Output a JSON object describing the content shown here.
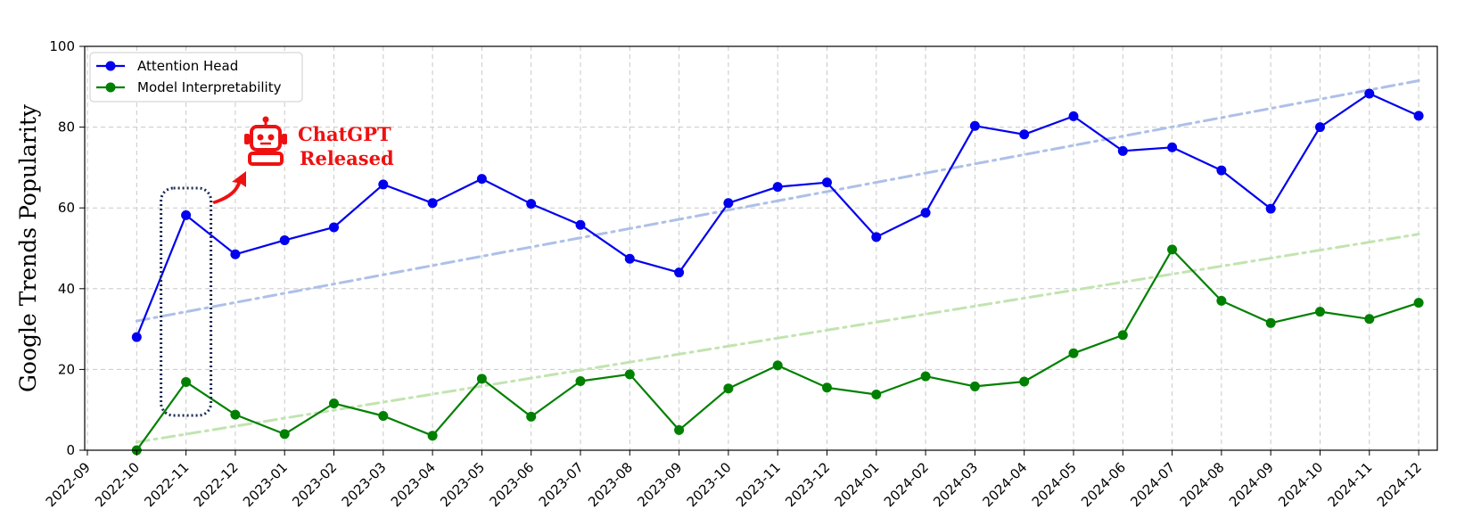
{
  "chart_data": {
    "type": "line",
    "title": "",
    "xlabel": "",
    "ylabel": "Google Trends Popularity",
    "ylim": [
      0,
      100
    ],
    "yticks": [
      0,
      20,
      40,
      60,
      80,
      100
    ],
    "xticks": [
      "2022-09",
      "2022-10",
      "2022-11",
      "2022-12",
      "2023-01",
      "2023-02",
      "2023-03",
      "2023-04",
      "2023-05",
      "2023-06",
      "2023-07",
      "2023-08",
      "2023-09",
      "2023-10",
      "2023-11",
      "2023-12",
      "2024-01",
      "2024-02",
      "2024-03",
      "2024-04",
      "2024-05",
      "2024-06",
      "2024-07",
      "2024-08",
      "2024-09",
      "2024-10",
      "2024-11",
      "2024-12"
    ],
    "x": [
      "2022-10",
      "2022-11",
      "2022-12",
      "2023-01",
      "2023-02",
      "2023-03",
      "2023-04",
      "2023-05",
      "2023-06",
      "2023-07",
      "2023-08",
      "2023-09",
      "2023-10",
      "2023-11",
      "2023-12",
      "2024-01",
      "2024-02",
      "2024-03",
      "2024-04",
      "2024-05",
      "2024-06",
      "2024-07",
      "2024-08",
      "2024-09",
      "2024-10",
      "2024-11",
      "2024-12"
    ],
    "series": [
      {
        "name": "Attention Head",
        "color": "#0000ee",
        "trend_color": "#aec0e8",
        "values": [
          28,
          58.2,
          48.5,
          52,
          55.2,
          65.8,
          61.2,
          67.2,
          61,
          55.8,
          47.4,
          44,
          61.2,
          65.2,
          66.3,
          52.8,
          58.8,
          80.3,
          78.2,
          82.7,
          74.1,
          75,
          69.3,
          59.8,
          80,
          88.3,
          82.8
        ],
        "trend": [
          32,
          91.5
        ]
      },
      {
        "name": "Model Interpretability",
        "color": "#008000",
        "trend_color": "#c2e4b0",
        "values": [
          0,
          16.9,
          8.8,
          4,
          11.6,
          8.5,
          3.6,
          17.7,
          8.3,
          17.1,
          18.8,
          5,
          15.3,
          21,
          15.5,
          13.8,
          18.3,
          15.8,
          17,
          24,
          28.5,
          49.7,
          37,
          31.5,
          34.3,
          32.5,
          36.5
        ],
        "trend": [
          2,
          53.5
        ]
      }
    ],
    "grid": true,
    "legend": "upper-left",
    "annotation": {
      "text_line1": "ChatGPT",
      "text_line2": "Released",
      "color": "#ee1111",
      "highlight_x": "2022-11",
      "icon": "robot-icon"
    }
  }
}
